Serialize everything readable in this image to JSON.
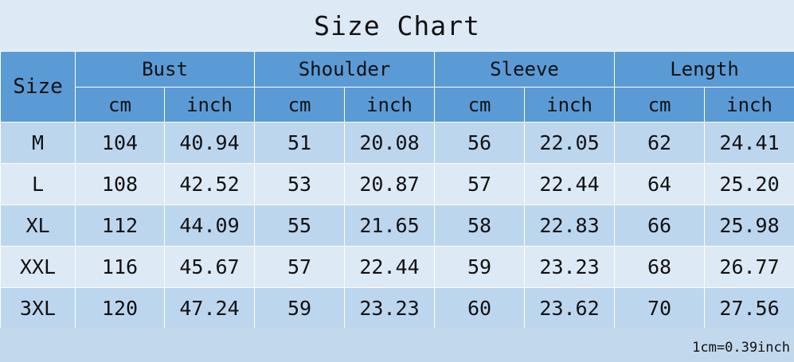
{
  "title": "Size Chart",
  "header": {
    "size_label": "Size",
    "groups": [
      "Bust",
      "Shoulder",
      "Sleeve",
      "Length"
    ],
    "units": [
      "cm",
      "inch",
      "cm",
      "inch",
      "cm",
      "inch",
      "cm",
      "inch"
    ]
  },
  "rows": [
    {
      "size": "M",
      "values": [
        "104",
        "40.94",
        "51",
        "20.08",
        "56",
        "22.05",
        "62",
        "24.41"
      ]
    },
    {
      "size": "L",
      "values": [
        "108",
        "42.52",
        "53",
        "20.87",
        "57",
        "22.44",
        "64",
        "25.20"
      ]
    },
    {
      "size": "XL",
      "values": [
        "112",
        "44.09",
        "55",
        "21.65",
        "58",
        "22.83",
        "66",
        "25.98"
      ]
    },
    {
      "size": "XXL",
      "values": [
        "116",
        "45.67",
        "57",
        "22.44",
        "59",
        "23.23",
        "68",
        "26.77"
      ]
    },
    {
      "size": "3XL",
      "values": [
        "120",
        "47.24",
        "59",
        "23.23",
        "60",
        "23.62",
        "70",
        "27.56"
      ]
    }
  ],
  "note": "1cm=0.39inch",
  "colors": {
    "header": "#5b9bd5",
    "row_dark": "#bcd6ee",
    "row_light": "#dde9f5",
    "background": "#dde9f5"
  }
}
